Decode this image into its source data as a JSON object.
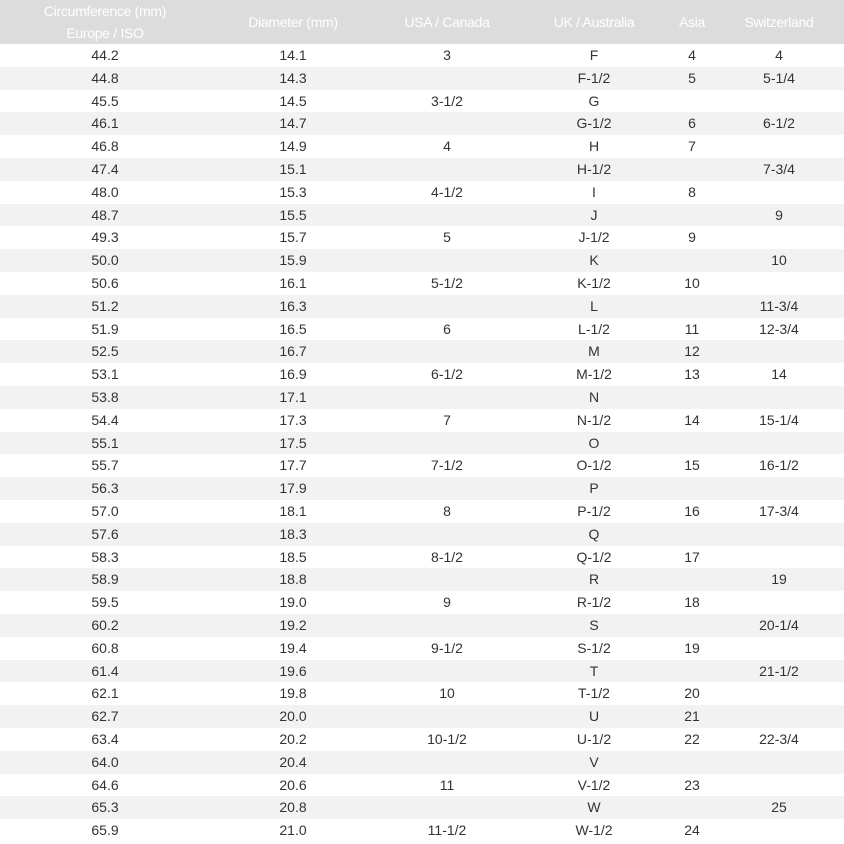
{
  "headers": {
    "circumference_line1": "Circumference (mm)",
    "circumference_line2": "Europe / ISO",
    "diameter": "Diameter (mm)",
    "usa": "USA / Canada",
    "uk": "UK / Australia",
    "asia": "Asia",
    "swiss": "Switzerland"
  },
  "rows": [
    [
      "44.2",
      "14.1",
      "3",
      "F",
      "4",
      "4"
    ],
    [
      "44.8",
      "14.3",
      "",
      "F-1/2",
      "5",
      "5-1/4"
    ],
    [
      "45.5",
      "14.5",
      "3-1/2",
      "G",
      "",
      ""
    ],
    [
      "46.1",
      "14.7",
      "",
      "G-1/2",
      "6",
      "6-1/2"
    ],
    [
      "46.8",
      "14.9",
      "4",
      "H",
      "7",
      ""
    ],
    [
      "47.4",
      "15.1",
      "",
      "H-1/2",
      "",
      "7-3/4"
    ],
    [
      "48.0",
      "15.3",
      "4-1/2",
      "I",
      "8",
      ""
    ],
    [
      "48.7",
      "15.5",
      "",
      "J",
      "",
      "9"
    ],
    [
      "49.3",
      "15.7",
      "5",
      "J-1/2",
      "9",
      ""
    ],
    [
      "50.0",
      "15.9",
      "",
      "K",
      "",
      "10"
    ],
    [
      "50.6",
      "16.1",
      "5-1/2",
      "K-1/2",
      "10",
      ""
    ],
    [
      "51.2",
      "16.3",
      "",
      "L",
      "",
      "11-3/4"
    ],
    [
      "51.9",
      "16.5",
      "6",
      "L-1/2",
      "11",
      "12-3/4"
    ],
    [
      "52.5",
      "16.7",
      "",
      "M",
      "12",
      ""
    ],
    [
      "53.1",
      "16.9",
      "6-1/2",
      "M-1/2",
      "13",
      "14"
    ],
    [
      "53.8",
      "17.1",
      "",
      "N",
      "",
      ""
    ],
    [
      "54.4",
      "17.3",
      "7",
      "N-1/2",
      "14",
      "15-1/4"
    ],
    [
      "55.1",
      "17.5",
      "",
      "O",
      "",
      ""
    ],
    [
      "55.7",
      "17.7",
      "7-1/2",
      "O-1/2",
      "15",
      "16-1/2"
    ],
    [
      "56.3",
      "17.9",
      "",
      "P",
      "",
      ""
    ],
    [
      "57.0",
      "18.1",
      "8",
      "P-1/2",
      "16",
      "17-3/4"
    ],
    [
      "57.6",
      "18.3",
      "",
      "Q",
      "",
      ""
    ],
    [
      "58.3",
      "18.5",
      "8-1/2",
      "Q-1/2",
      "17",
      ""
    ],
    [
      "58.9",
      "18.8",
      "",
      "R",
      "",
      "19"
    ],
    [
      "59.5",
      "19.0",
      "9",
      "R-1/2",
      "18",
      ""
    ],
    [
      "60.2",
      "19.2",
      "",
      "S",
      "",
      "20-1/4"
    ],
    [
      "60.8",
      "19.4",
      "9-1/2",
      "S-1/2",
      "19",
      ""
    ],
    [
      "61.4",
      "19.6",
      "",
      "T",
      "",
      "21-1/2"
    ],
    [
      "62.1",
      "19.8",
      "10",
      "T-1/2",
      "20",
      ""
    ],
    [
      "62.7",
      "20.0",
      "",
      "U",
      "21",
      ""
    ],
    [
      "63.4",
      "20.2",
      "10-1/2",
      "U-1/2",
      "22",
      "22-3/4"
    ],
    [
      "64.0",
      "20.4",
      "",
      "V",
      "",
      ""
    ],
    [
      "64.6",
      "20.6",
      "11",
      "V-1/2",
      "23",
      ""
    ],
    [
      "65.3",
      "20.8",
      "",
      "W",
      "",
      "25"
    ],
    [
      "65.9",
      "21.0",
      "11-1/2",
      "W-1/2",
      "24",
      ""
    ]
  ]
}
